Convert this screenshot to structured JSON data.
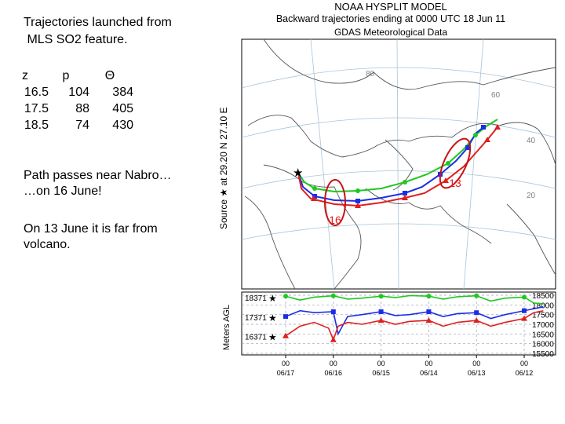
{
  "left_panel": {
    "title": "Trajectories launched from\n MLS SO2 feature.",
    "table": {
      "headers": [
        "z",
        "p",
        "Θ"
      ],
      "rows": [
        [
          "16.5",
          "104",
          "384"
        ],
        [
          "17.5",
          "88",
          "405"
        ],
        [
          "18.5",
          "74",
          "430"
        ]
      ]
    },
    "note1": "Path passes near Nabro…\n…on 16 June!",
    "note2": "On 13 June it is far from\nvolcano."
  },
  "figure": {
    "header1": "NOAA HYSPLIT MODEL",
    "header2": "Backward trajectories ending at 0000 UTC 18 Jun 11",
    "header3": "GDAS Meteorological Data",
    "source_label": "Source ★ at  29.20 N  27.10 E",
    "map_lat_labels": [
      "80",
      "60",
      "40",
      "20"
    ],
    "circle_labels": [
      "16",
      "13"
    ],
    "colors": {
      "green": "#1ec81e",
      "blue": "#1a2ee6",
      "red": "#e01e1e",
      "annotation": "#e01e1e"
    }
  },
  "chart_data": {
    "type": "line",
    "title": "",
    "ylabel": "Meters AGL",
    "ylim_right": [
      15500,
      18500
    ],
    "right_ticks": [
      "18500",
      "18000",
      "17500",
      "17000",
      "16500",
      "16000",
      "15500"
    ],
    "left_ticks": [
      "18371",
      "17371",
      "16371"
    ],
    "x_ticks": [
      {
        "top": "00",
        "bottom": "06/17"
      },
      {
        "top": "00",
        "bottom": "06/16"
      },
      {
        "top": "00",
        "bottom": "06/15"
      },
      {
        "top": "00",
        "bottom": "06/14"
      },
      {
        "top": "00",
        "bottom": "06/13"
      },
      {
        "top": "00",
        "bottom": "06/12"
      }
    ],
    "series": [
      {
        "color": "green",
        "x": [
          0,
          0.3,
          0.6,
          1,
          1.3,
          1.6,
          2,
          2.3,
          2.6,
          3,
          3.3,
          3.6,
          4,
          4.3,
          4.6,
          5,
          5.2,
          5.4
        ],
        "y": [
          18450,
          18250,
          18400,
          18470,
          18300,
          18350,
          18450,
          18380,
          18480,
          18450,
          18300,
          18420,
          18470,
          18200,
          18350,
          18400,
          18100,
          18050
        ]
      },
      {
        "color": "blue",
        "x": [
          0,
          0.3,
          0.6,
          1,
          1.1,
          1.3,
          1.6,
          2,
          2.3,
          2.6,
          3,
          3.3,
          3.6,
          4,
          4.3,
          4.6,
          5,
          5.2,
          5.4
        ],
        "y": [
          17400,
          17700,
          17600,
          17650,
          16500,
          17400,
          17500,
          17650,
          17450,
          17500,
          17650,
          17400,
          17550,
          17600,
          17300,
          17500,
          17700,
          17800,
          17900
        ]
      },
      {
        "color": "red",
        "x": [
          0,
          0.3,
          0.6,
          0.9,
          1,
          1.1,
          1.3,
          1.6,
          2,
          2.3,
          2.6,
          3,
          3.3,
          3.6,
          4,
          4.3,
          4.6,
          5,
          5.2,
          5.4
        ],
        "y": [
          16400,
          16900,
          17100,
          16800,
          16200,
          16900,
          17100,
          17000,
          17200,
          17000,
          17150,
          17200,
          16900,
          17100,
          17200,
          16900,
          17100,
          17300,
          17600,
          17700
        ]
      }
    ]
  }
}
